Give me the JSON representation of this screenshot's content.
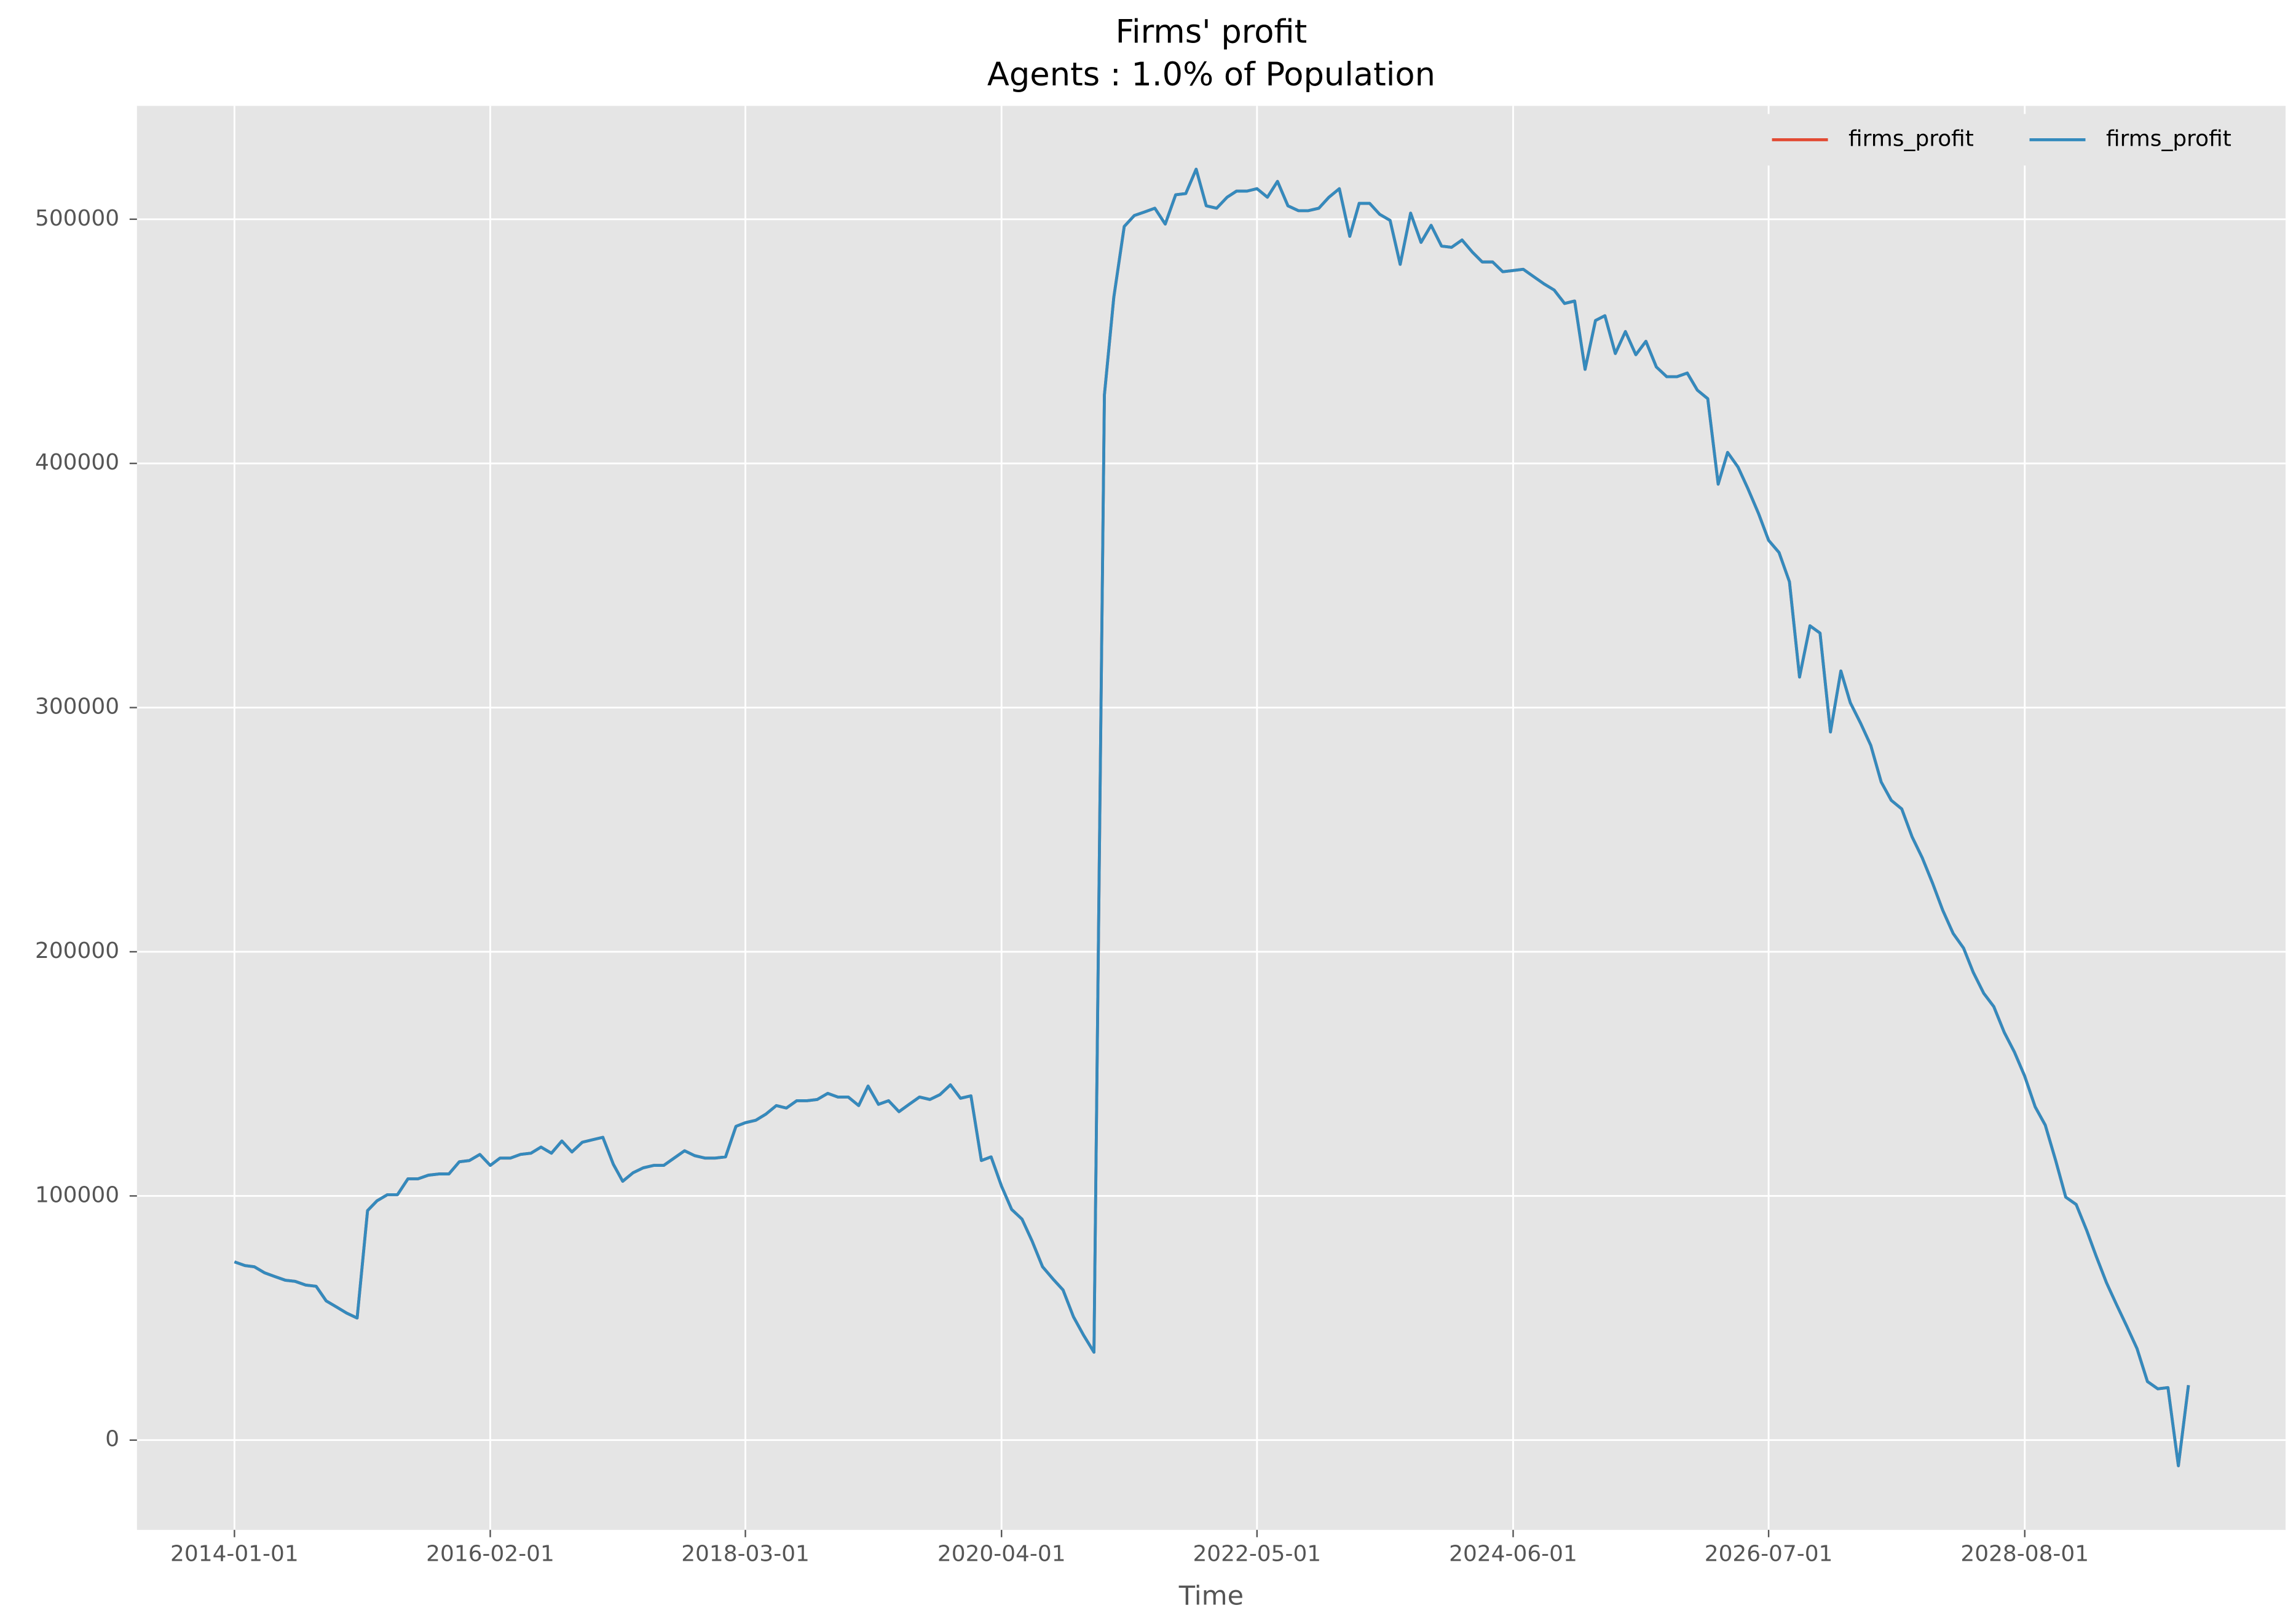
{
  "chart_data": {
    "type": "line",
    "title": "Firms' profit",
    "subtitle": "Agents : 1.0% of Population",
    "x_label": "Time",
    "x": [
      "2014-01-01",
      "2014-02-01",
      "2014-03-01",
      "2014-04-01",
      "2014-05-01",
      "2014-06-01",
      "2014-07-01",
      "2014-08-01",
      "2014-09-01",
      "2014-10-01",
      "2014-11-01",
      "2014-12-01",
      "2015-01-01",
      "2015-02-01",
      "2015-03-01",
      "2015-04-01",
      "2015-05-01",
      "2015-06-01",
      "2015-07-01",
      "2015-08-01",
      "2015-09-01",
      "2015-10-01",
      "2015-11-01",
      "2015-12-01",
      "2016-01-01",
      "2016-02-01",
      "2016-03-01",
      "2016-04-01",
      "2016-05-01",
      "2016-06-01",
      "2016-07-01",
      "2016-08-01",
      "2016-09-01",
      "2016-10-01",
      "2016-11-01",
      "2016-12-01",
      "2017-01-01",
      "2017-02-01",
      "2017-03-01",
      "2017-04-01",
      "2017-05-01",
      "2017-06-01",
      "2017-07-01",
      "2017-08-01",
      "2017-09-01",
      "2017-10-01",
      "2017-11-01",
      "2017-12-01",
      "2018-01-01",
      "2018-02-01",
      "2018-03-01",
      "2018-04-01",
      "2018-05-01",
      "2018-06-01",
      "2018-07-01",
      "2018-08-01",
      "2018-09-01",
      "2018-10-01",
      "2018-11-01",
      "2018-12-01",
      "2019-01-01",
      "2019-02-01",
      "2019-03-01",
      "2019-04-01",
      "2019-05-01",
      "2019-06-01",
      "2019-07-01",
      "2019-08-01",
      "2019-09-01",
      "2019-10-01",
      "2019-11-01",
      "2019-12-01",
      "2020-01-01",
      "2020-02-01",
      "2020-03-01",
      "2020-04-01",
      "2020-05-01",
      "2020-06-01",
      "2020-07-01",
      "2020-08-01",
      "2020-09-01",
      "2020-10-01",
      "2020-11-01",
      "2020-12-01",
      "2021-01-01",
      "2021-02-01",
      "2021-03-01",
      "2021-04-01",
      "2021-05-01",
      "2021-06-01",
      "2021-07-01",
      "2021-08-01",
      "2021-09-01",
      "2021-10-01",
      "2021-11-01",
      "2021-12-01",
      "2022-01-01",
      "2022-02-01",
      "2022-03-01",
      "2022-04-01",
      "2022-05-01",
      "2022-06-01",
      "2022-07-01",
      "2022-08-01",
      "2022-09-01",
      "2022-10-01",
      "2022-11-01",
      "2022-12-01",
      "2023-01-01",
      "2023-02-01",
      "2023-03-01",
      "2023-04-01",
      "2023-05-01",
      "2023-06-01",
      "2023-07-01",
      "2023-08-01",
      "2023-09-01",
      "2023-10-01",
      "2023-11-01",
      "2023-12-01",
      "2024-01-01",
      "2024-02-01",
      "2024-03-01",
      "2024-04-01",
      "2024-05-01",
      "2024-06-01",
      "2024-07-01",
      "2024-08-01",
      "2024-09-01",
      "2024-10-01",
      "2024-11-01",
      "2024-12-01",
      "2025-01-01",
      "2025-02-01",
      "2025-03-01",
      "2025-04-01",
      "2025-05-01",
      "2025-06-01",
      "2025-07-01",
      "2025-08-01",
      "2025-09-01",
      "2025-10-01",
      "2025-11-01",
      "2025-12-01",
      "2026-01-01",
      "2026-02-01",
      "2026-03-01",
      "2026-04-01",
      "2026-05-01",
      "2026-06-01",
      "2026-07-01",
      "2026-08-01",
      "2026-09-01",
      "2026-10-01",
      "2026-11-01",
      "2026-12-01",
      "2027-01-01",
      "2027-02-01",
      "2027-03-01",
      "2027-04-01",
      "2027-05-01",
      "2027-06-01",
      "2027-07-01",
      "2027-08-01",
      "2027-09-01",
      "2027-10-01",
      "2027-11-01",
      "2027-12-01",
      "2028-01-01",
      "2028-02-01",
      "2028-03-01",
      "2028-04-01",
      "2028-05-01",
      "2028-06-01",
      "2028-07-01",
      "2028-08-01",
      "2028-09-01",
      "2028-10-01",
      "2028-11-01",
      "2028-12-01",
      "2029-01-01",
      "2029-02-01",
      "2029-03-01",
      "2029-04-01",
      "2029-05-01",
      "2029-06-01",
      "2029-07-01",
      "2029-08-01",
      "2029-09-01",
      "2029-10-01",
      "2029-11-01",
      "2029-12-01"
    ],
    "series": [
      {
        "name": "firms_profit",
        "color": "#E24A33",
        "values": [
          73000,
          71500,
          71000,
          68500,
          67000,
          65500,
          65000,
          63500,
          63000,
          57000,
          54500,
          52000,
          50000,
          94000,
          98000,
          100500,
          100500,
          107000,
          107000,
          108500,
          109000,
          109000,
          114000,
          114500,
          117000,
          112500,
          115500,
          115500,
          117000,
          117500,
          120000,
          117500,
          122500,
          118000,
          122000,
          123000,
          124000,
          113000,
          106000,
          109500,
          111500,
          112500,
          112500,
          115500,
          118500,
          116500,
          115500,
          115500,
          116000,
          128500,
          130000,
          131000,
          133500,
          137000,
          136000,
          139000,
          139000,
          139500,
          142000,
          140500,
          140500,
          137000,
          145000,
          137500,
          139000,
          134500,
          137500,
          140500,
          139500,
          141500,
          145500,
          140000,
          141000,
          114500,
          116000,
          104000,
          94500,
          90500,
          81500,
          71000,
          66000,
          61500,
          50500,
          43000,
          36000,
          428000,
          468000,
          497000,
          501500,
          503000,
          504500,
          498000,
          510000,
          510500,
          520500,
          505500,
          504500,
          509000,
          511500,
          511500,
          512500,
          509000,
          515500,
          505500,
          503500,
          503500,
          504500,
          509000,
          512500,
          493000,
          506500,
          506500,
          502000,
          499500,
          481500,
          502500,
          490500,
          497500,
          489000,
          488500,
          491500,
          486500,
          482500,
          482500,
          478500,
          479000,
          479500,
          476500,
          473500,
          471000,
          465500,
          466500,
          438500,
          458500,
          460500,
          445000,
          454000,
          444500,
          450000,
          439500,
          435500,
          435500,
          437000,
          430000,
          426500,
          391500,
          404500,
          398500,
          389500,
          379500,
          368500,
          363500,
          351500,
          312500,
          333500,
          330500,
          290000,
          315000,
          302000,
          293500,
          284500,
          269500,
          262000,
          258500,
          247000,
          238500,
          228000,
          217000,
          207500,
          201500,
          191500,
          183000,
          177500,
          167000,
          159000,
          149000,
          136500,
          129000,
          114500,
          99500,
          96500,
          86000,
          75500,
          64500,
          55500,
          46500,
          37500,
          24000,
          21000,
          21500,
          -10500,
          22500
        ]
      },
      {
        "name": "firms_profit",
        "color": "#348ABD",
        "values": [
          73000,
          71500,
          71000,
          68500,
          67000,
          65500,
          65000,
          63500,
          63000,
          57000,
          54500,
          52000,
          50000,
          94000,
          98000,
          100500,
          100500,
          107000,
          107000,
          108500,
          109000,
          109000,
          114000,
          114500,
          117000,
          112500,
          115500,
          115500,
          117000,
          117500,
          120000,
          117500,
          122500,
          118000,
          122000,
          123000,
          124000,
          113000,
          106000,
          109500,
          111500,
          112500,
          112500,
          115500,
          118500,
          116500,
          115500,
          115500,
          116000,
          128500,
          130000,
          131000,
          133500,
          137000,
          136000,
          139000,
          139000,
          139500,
          142000,
          140500,
          140500,
          137000,
          145000,
          137500,
          139000,
          134500,
          137500,
          140500,
          139500,
          141500,
          145500,
          140000,
          141000,
          114500,
          116000,
          104000,
          94500,
          90500,
          81500,
          71000,
          66000,
          61500,
          50500,
          43000,
          36000,
          428000,
          468000,
          497000,
          501500,
          503000,
          504500,
          498000,
          510000,
          510500,
          520500,
          505500,
          504500,
          509000,
          511500,
          511500,
          512500,
          509000,
          515500,
          505500,
          503500,
          503500,
          504500,
          509000,
          512500,
          493000,
          506500,
          506500,
          502000,
          499500,
          481500,
          502500,
          490500,
          497500,
          489000,
          488500,
          491500,
          486500,
          482500,
          482500,
          478500,
          479000,
          479500,
          476500,
          473500,
          471000,
          465500,
          466500,
          438500,
          458500,
          460500,
          445000,
          454000,
          444500,
          450000,
          439500,
          435500,
          435500,
          437000,
          430000,
          426500,
          391500,
          404500,
          398500,
          389500,
          379500,
          368500,
          363500,
          351500,
          312500,
          333500,
          330500,
          290000,
          315000,
          302000,
          293500,
          284500,
          269500,
          262000,
          258500,
          247000,
          238500,
          228000,
          217000,
          207500,
          201500,
          191500,
          183000,
          177500,
          167000,
          159000,
          149000,
          136500,
          129000,
          114500,
          99500,
          96500,
          86000,
          75500,
          64500,
          55500,
          46500,
          37500,
          24000,
          21000,
          21500,
          -10500,
          22500
        ]
      }
    ],
    "xlim": [
      "2013-03-17",
      "2030-09-16"
    ],
    "xticks": [
      "2014-01-01",
      "2016-02-01",
      "2018-03-01",
      "2020-04-01",
      "2022-05-01",
      "2024-06-01",
      "2026-07-01",
      "2028-08-01"
    ],
    "ylim": [
      -36750,
      546400
    ],
    "yticks": [
      0,
      100000,
      200000,
      300000,
      400000,
      500000
    ],
    "grid": true,
    "legend": "upper right"
  }
}
